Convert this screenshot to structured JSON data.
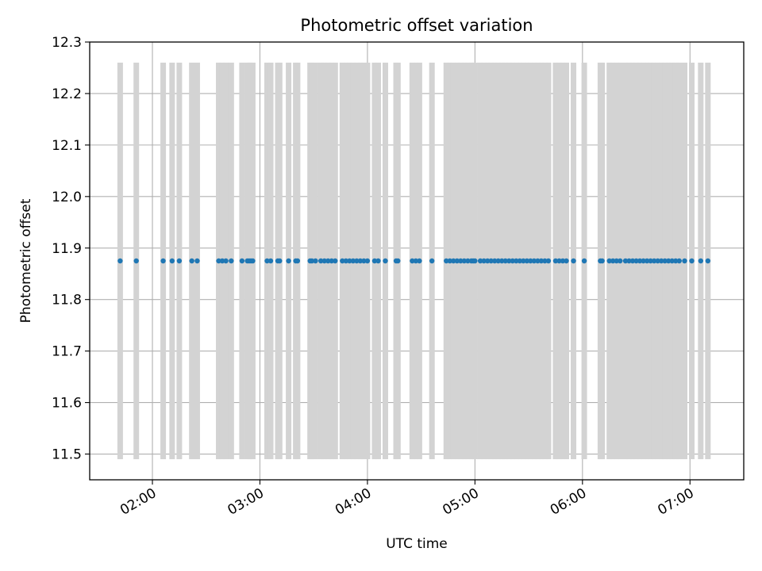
{
  "chart_data": {
    "type": "scatter",
    "title": "Photometric offset variation",
    "xlabel": "UTC time",
    "ylabel": "Photometric offset",
    "x_tick_labels": [
      "02:00",
      "03:00",
      "04:00",
      "05:00",
      "06:00",
      "07:00"
    ],
    "y_tick_labels": [
      "11.5",
      "11.6",
      "11.7",
      "11.8",
      "11.9",
      "12.0",
      "12.1",
      "12.2",
      "12.3"
    ],
    "xlim": [
      "01:25",
      "07:30"
    ],
    "ylim": [
      11.45,
      12.3
    ],
    "grid": true,
    "marker_color": "#1f77b4",
    "band_color": "#d3d3d3",
    "band_range": [
      11.49,
      12.26
    ],
    "y_value": 11.875,
    "times": [
      "01:42",
      "01:51",
      "02:06",
      "02:11",
      "02:15",
      "02:22",
      "02:25",
      "02:37",
      "02:39",
      "02:41",
      "02:44",
      "02:50",
      "02:53",
      "02:54",
      "02:55",
      "02:56",
      "03:04",
      "03:06",
      "03:10",
      "03:11",
      "03:16",
      "03:20",
      "03:21",
      "03:28",
      "03:29",
      "03:31",
      "03:34",
      "03:36",
      "03:38",
      "03:40",
      "03:42",
      "03:46",
      "03:48",
      "03:50",
      "03:52",
      "03:54",
      "03:56",
      "03:58",
      "04:00",
      "04:04",
      "04:06",
      "04:10",
      "04:16",
      "04:17",
      "04:25",
      "04:27",
      "04:29",
      "04:36",
      "04:44",
      "04:46",
      "04:48",
      "04:50",
      "04:52",
      "04:54",
      "04:56",
      "04:58",
      "04:59",
      "05:00",
      "05:03",
      "05:05",
      "05:07",
      "05:09",
      "05:11",
      "05:13",
      "05:15",
      "05:17",
      "05:19",
      "05:21",
      "05:23",
      "05:25",
      "05:27",
      "05:29",
      "05:31",
      "05:33",
      "05:35",
      "05:37",
      "05:39",
      "05:41",
      "05:45",
      "05:47",
      "05:49",
      "05:51",
      "05:55",
      "06:01",
      "06:10",
      "06:11",
      "06:15",
      "06:17",
      "06:19",
      "06:21",
      "06:24",
      "06:26",
      "06:28",
      "06:30",
      "06:32",
      "06:34",
      "06:36",
      "06:38",
      "06:40",
      "06:42",
      "06:44",
      "06:46",
      "06:48",
      "06:50",
      "06:52",
      "06:54",
      "06:57",
      "07:01",
      "07:06",
      "07:10"
    ]
  }
}
